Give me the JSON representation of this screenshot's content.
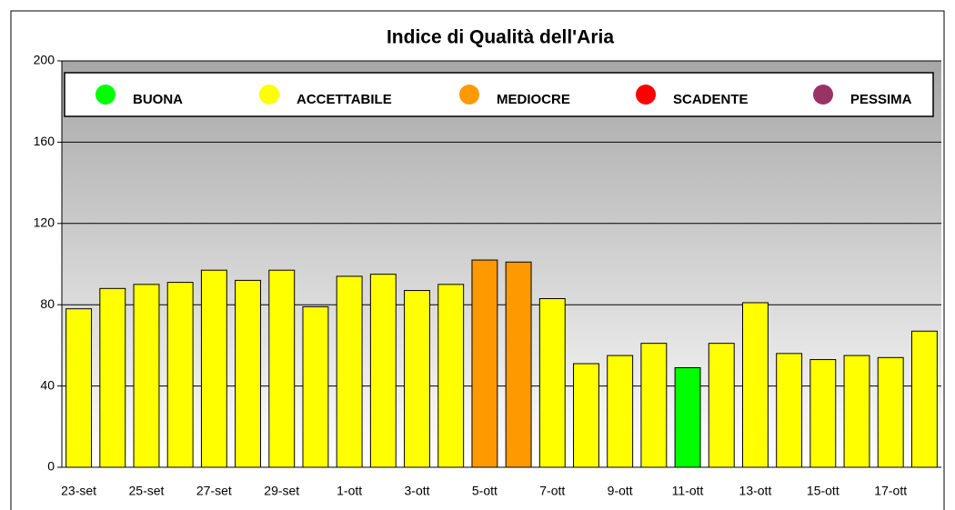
{
  "chart_data": {
    "type": "bar",
    "title": "Indice di Qualità dell'Aria",
    "categories": [
      "23-set",
      null,
      "25-set",
      null,
      "27-set",
      null,
      "29-set",
      null,
      "1-ott",
      null,
      "3-ott",
      null,
      "5-ott",
      null,
      "7-ott",
      null,
      "9-ott",
      null,
      "11-ott",
      null,
      "13-ott",
      null,
      "15-ott",
      null,
      "17-ott",
      null
    ],
    "values": [
      78,
      88,
      90,
      91,
      97,
      92,
      97,
      79,
      94,
      95,
      87,
      90,
      102,
      101,
      83,
      51,
      55,
      61,
      49,
      61,
      81,
      56,
      53,
      55,
      54,
      67
    ],
    "colors": [
      "#ffff00",
      "#ffff00",
      "#ffff00",
      "#ffff00",
      "#ffff00",
      "#ffff00",
      "#ffff00",
      "#ffff00",
      "#ffff00",
      "#ffff00",
      "#ffff00",
      "#ffff00",
      "#ff9900",
      "#ff9900",
      "#ffff00",
      "#ffff00",
      "#ffff00",
      "#ffff00",
      "#00ff00",
      "#ffff00",
      "#ffff00",
      "#ffff00",
      "#ffff00",
      "#ffff00",
      "#ffff00",
      "#ffff00"
    ],
    "legend": [
      {
        "name": "BUONA",
        "color": "#00ff00"
      },
      {
        "name": "ACCETTABILE",
        "color": "#ffff00"
      },
      {
        "name": "MEDIOCRE",
        "color": "#ff9900"
      },
      {
        "name": "SCADENTE",
        "color": "#ff0000"
      },
      {
        "name": "PESSIMA",
        "color": "#993366"
      }
    ],
    "ylim": [
      0,
      200
    ],
    "yticks": [
      0,
      40,
      80,
      120,
      160,
      200
    ],
    "grid": true
  }
}
